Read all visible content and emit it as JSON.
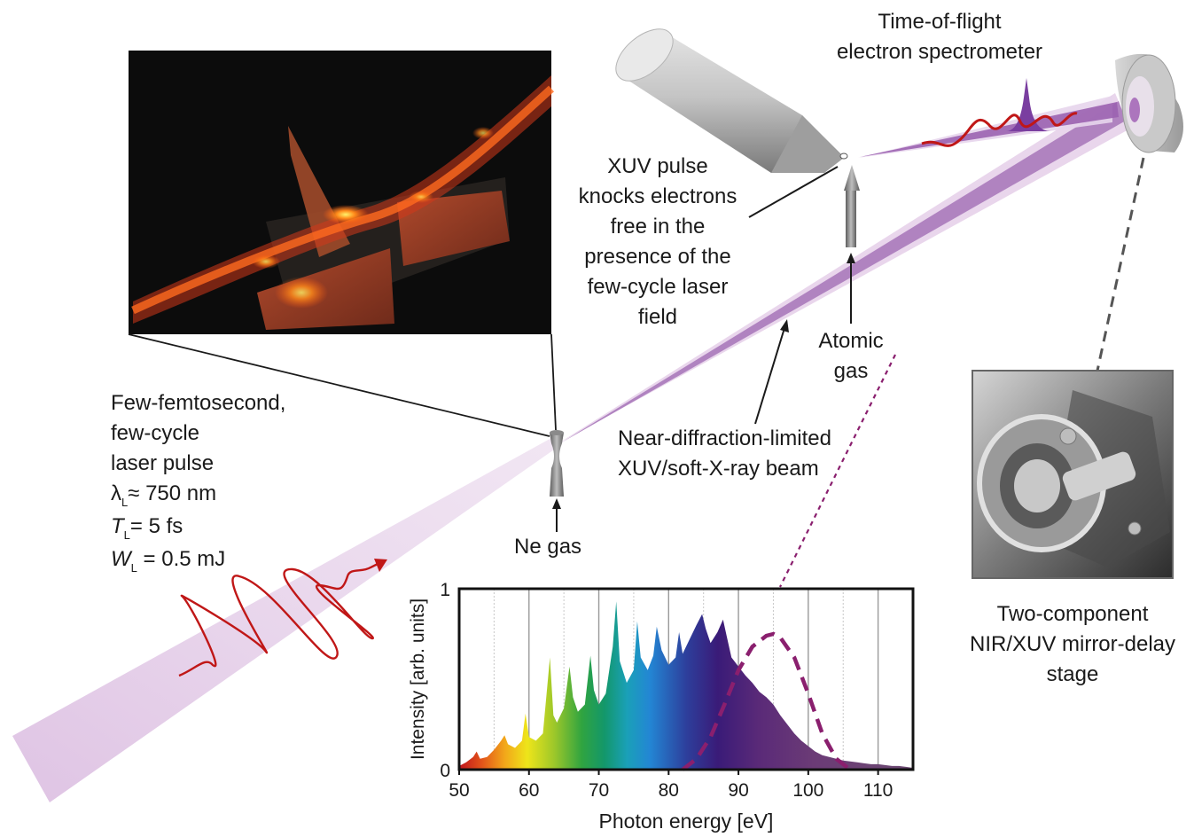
{
  "labels": {
    "tof_line1": "Time-of-flight",
    "tof_line2": "electron spectrometer",
    "xuv_knock": [
      "XUV pulse",
      "knocks electrons",
      "free in the",
      "presence of the",
      "few-cycle laser",
      "field"
    ],
    "atomic_gas": [
      "Atomic",
      "gas"
    ],
    "beam_label": [
      "Near-diffraction-limited",
      "XUV/soft-X-ray beam"
    ],
    "laser_pulse": [
      "Few-femtosecond,",
      "few-cycle",
      "laser pulse"
    ],
    "lambda_sym": "λ",
    "lambda_sub": "L",
    "lambda_val": "≈ 750 nm",
    "t_sym": "T",
    "t_sub": "L",
    "t_val": "= 5 fs",
    "w_sym": "W",
    "w_sub": "L",
    "w_val": " = 0.5 mJ",
    "ne_gas": "Ne gas",
    "stage": [
      "Two-component",
      "NIR/XUV mirror-delay",
      "stage"
    ]
  },
  "chart_data": {
    "type": "area",
    "xlabel": "Photon energy [eV]",
    "ylabel": "Intensity [arb. units]",
    "xlim": [
      50,
      115
    ],
    "ylim": [
      0,
      1
    ],
    "xticks": [
      50,
      60,
      70,
      80,
      90,
      100,
      110
    ],
    "yticks": [
      0,
      1
    ],
    "grid": "vertical",
    "series": [
      {
        "style": "filled spectrum, rainbow gradient",
        "x": [
          50,
          51,
          52,
          52.5,
          53,
          54,
          55,
          56,
          56.5,
          57,
          58,
          59,
          59.5,
          60,
          61,
          62,
          63,
          63.5,
          64,
          65,
          65.8,
          66.3,
          67,
          68,
          68.8,
          69.3,
          70,
          71,
          72,
          72.5,
          73,
          74,
          75,
          75.5,
          76,
          77,
          77.8,
          78.3,
          79,
          80,
          81,
          81.5,
          82,
          83,
          84,
          84.8,
          85.3,
          86,
          87,
          87.8,
          88.3,
          89,
          90,
          91,
          92,
          93,
          94,
          95,
          96,
          97,
          98,
          99,
          100,
          101,
          102,
          103,
          104,
          105,
          106,
          107,
          108,
          109,
          110,
          111,
          112,
          113,
          114,
          115
        ],
        "y": [
          0.02,
          0.04,
          0.07,
          0.1,
          0.06,
          0.07,
          0.11,
          0.16,
          0.19,
          0.14,
          0.12,
          0.16,
          0.31,
          0.18,
          0.16,
          0.2,
          0.62,
          0.3,
          0.26,
          0.34,
          0.57,
          0.4,
          0.32,
          0.36,
          0.63,
          0.44,
          0.36,
          0.42,
          0.68,
          0.93,
          0.6,
          0.48,
          0.55,
          0.82,
          0.62,
          0.55,
          0.63,
          0.79,
          0.66,
          0.58,
          0.62,
          0.76,
          0.64,
          0.72,
          0.8,
          0.86,
          0.78,
          0.7,
          0.76,
          0.83,
          0.74,
          0.62,
          0.57,
          0.52,
          0.48,
          0.43,
          0.4,
          0.36,
          0.3,
          0.25,
          0.2,
          0.16,
          0.13,
          0.1,
          0.08,
          0.07,
          0.06,
          0.05,
          0.045,
          0.04,
          0.035,
          0.03,
          0.03,
          0.025,
          0.02,
          0.02,
          0.015,
          0.01
        ]
      },
      {
        "style": "dashed curve",
        "x": [
          82,
          84,
          86,
          88,
          90,
          92,
          94,
          95,
          96,
          98,
          100,
          102,
          104,
          106
        ],
        "y": [
          0,
          0.06,
          0.18,
          0.36,
          0.55,
          0.68,
          0.74,
          0.75,
          0.73,
          0.62,
          0.42,
          0.2,
          0.06,
          0
        ]
      }
    ]
  },
  "colors": {
    "beam_purple": "#8c4a9e",
    "beam_light": "#e7d2ea",
    "pulse_red": "#c01717",
    "dashed_curve": "#8a1f6e",
    "spectrometer_gray": "#b7b7b7"
  }
}
